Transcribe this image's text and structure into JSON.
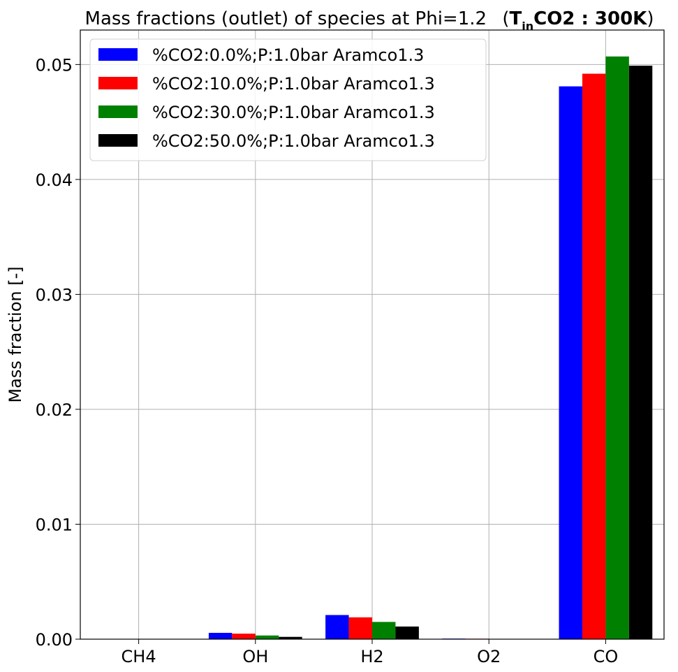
{
  "chart_data": {
    "type": "bar",
    "title_prefix": "Mass fractions (outlet) of species at Phi=1.2",
    "title_math": {
      "base": "T",
      "subscript": "in",
      "rest": "CO2 : 300K"
    },
    "xlabel": "",
    "ylabel": "Mass fraction [-]",
    "categories": [
      "CH4",
      "OH",
      "H2",
      "O2",
      "CO"
    ],
    "ylim": [
      0,
      0.053
    ],
    "yticks": [
      0.0,
      0.01,
      0.02,
      0.03,
      0.04,
      0.05
    ],
    "ytick_labels": [
      "0.00",
      "0.01",
      "0.02",
      "0.03",
      "0.04",
      "0.05"
    ],
    "grid": true,
    "legend_position": "top-left",
    "series": [
      {
        "name": "%CO2:0.0%;P:1.0bar Aramco1.3",
        "color": "#0000ff",
        "values": [
          0.0,
          0.00055,
          0.0021,
          5e-05,
          0.0481
        ]
      },
      {
        "name": "%CO2:10.0%;P:1.0bar Aramco1.3",
        "color": "#ff0000",
        "values": [
          0.0,
          0.00048,
          0.0019,
          4e-05,
          0.0492
        ]
      },
      {
        "name": "%CO2:30.0%;P:1.0bar Aramco1.3",
        "color": "#008000",
        "values": [
          0.0,
          0.00032,
          0.0015,
          2e-05,
          0.0507
        ]
      },
      {
        "name": "%CO2:50.0%;P:1.0bar Aramco1.3",
        "color": "#000000",
        "values": [
          0.0,
          0.0002,
          0.0011,
          1e-05,
          0.0499
        ]
      }
    ]
  }
}
